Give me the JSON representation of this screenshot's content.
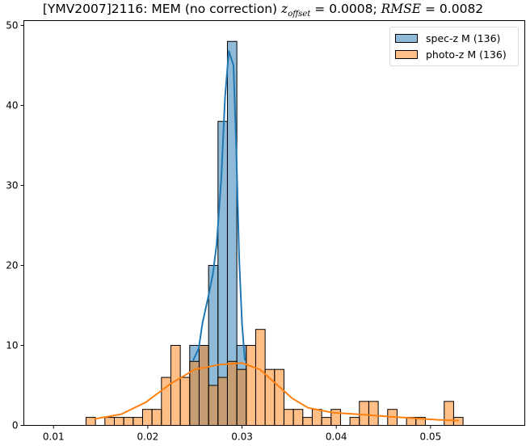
{
  "chart_data": {
    "type": "bar",
    "title": {
      "prefix": "[YMV2007]2116: MEM (no correction) ",
      "z_symbol": "z",
      "z_sub": "offset",
      "z_value": " = 0.0008; ",
      "rmse_symbol": "RMSE",
      "rmse_value": " = 0.0082"
    },
    "xlabel": "",
    "ylabel": "",
    "xlim": [
      0.00685,
      0.06
    ],
    "ylim": [
      0,
      50.6
    ],
    "xticks": [
      0.01,
      0.02,
      0.03,
      0.04,
      0.05
    ],
    "xtick_labels": [
      "0.01",
      "0.02",
      "0.03",
      "0.04",
      "0.05"
    ],
    "yticks": [
      0,
      10,
      20,
      30,
      40,
      50
    ],
    "ytick_labels": [
      "0",
      "10",
      "20",
      "30",
      "40",
      "50"
    ],
    "bin_width": 0.001,
    "legend_position": "top-right",
    "series": [
      {
        "name": "spec-z M (136)",
        "color": "#1f77b4",
        "bin_start": 0.02445,
        "counts": [
          10,
          10,
          20,
          38,
          48,
          10
        ],
        "kde": [
          [
            0.0248,
            8.1
          ],
          [
            0.0254,
            9.6
          ],
          [
            0.0258,
            12.8
          ],
          [
            0.0264,
            16
          ],
          [
            0.0269,
            18.9
          ],
          [
            0.0273,
            22.6
          ],
          [
            0.0278,
            30.9
          ],
          [
            0.0282,
            41
          ],
          [
            0.0286,
            46.8
          ],
          [
            0.0291,
            45
          ],
          [
            0.0294,
            34.3
          ],
          [
            0.0297,
            20.9
          ],
          [
            0.03,
            12.8
          ],
          [
            0.0303,
            8.1
          ]
        ]
      },
      {
        "name": "photo-z M (136)",
        "color": "#ff7f0e",
        "bin_start": 0.01345,
        "counts": [
          1,
          0,
          1,
          1,
          1,
          1,
          2,
          2,
          6,
          10,
          6,
          8,
          10,
          5,
          6,
          8,
          7,
          10,
          12,
          7,
          7,
          2,
          2,
          1,
          2,
          1,
          2,
          0,
          1,
          3,
          3,
          0,
          2,
          0,
          1,
          1,
          0,
          0,
          3,
          1
        ],
        "kde": [
          [
            0.0143,
            0.8
          ],
          [
            0.0172,
            1.4
          ],
          [
            0.0198,
            2.9
          ],
          [
            0.0224,
            5.2
          ],
          [
            0.025,
            7.0
          ],
          [
            0.0276,
            7.6
          ],
          [
            0.03,
            7.8
          ],
          [
            0.0319,
            7.0
          ],
          [
            0.0336,
            5.2
          ],
          [
            0.0353,
            3.4
          ],
          [
            0.037,
            2.2
          ],
          [
            0.0396,
            1.6
          ],
          [
            0.0422,
            1.4
          ],
          [
            0.0456,
            1.1
          ],
          [
            0.0482,
            0.9
          ],
          [
            0.0508,
            0.7
          ],
          [
            0.053,
            0.6
          ]
        ]
      }
    ]
  }
}
